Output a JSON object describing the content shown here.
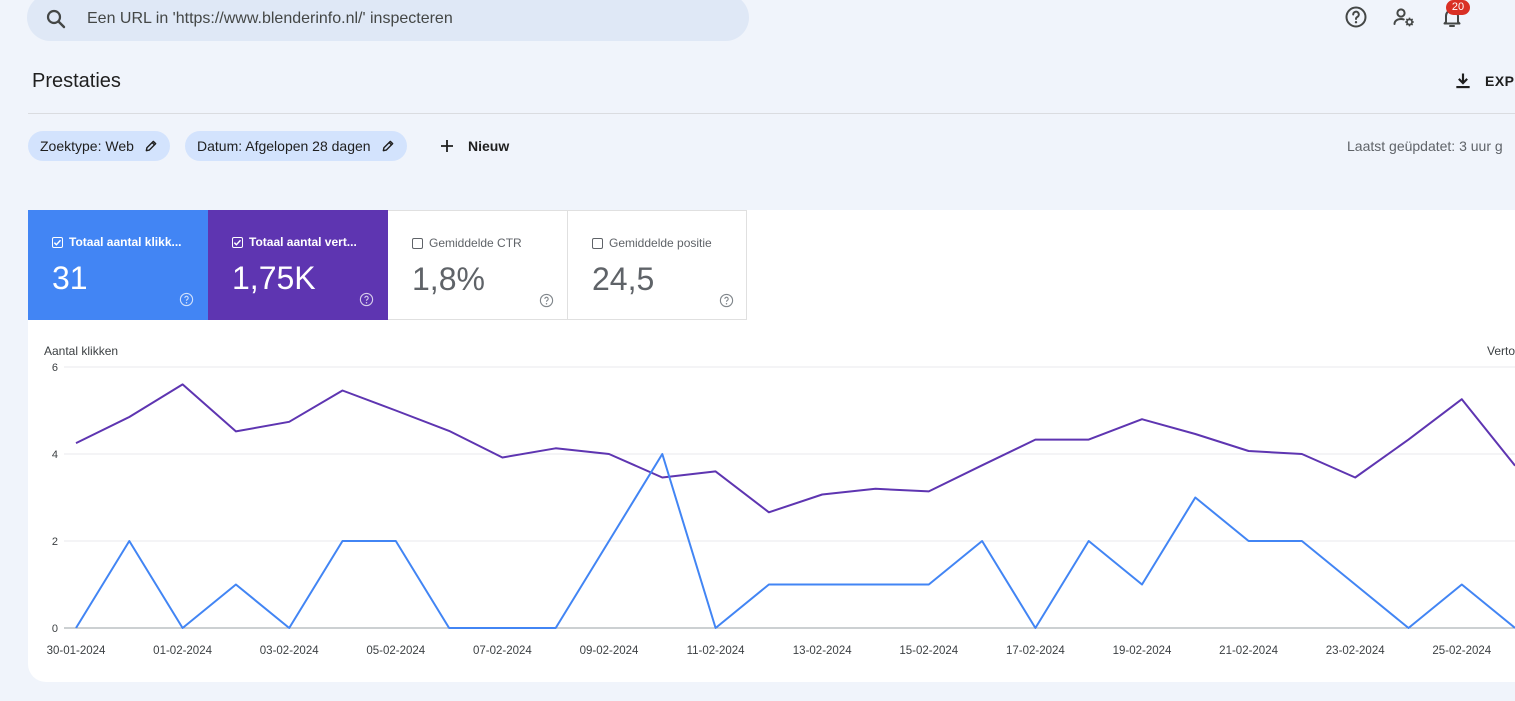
{
  "search": {
    "placeholder": "Een URL in 'https://www.blenderinfo.nl/' inspecteren"
  },
  "header": {
    "notification_count": "20"
  },
  "page": {
    "title": "Prestaties",
    "export_label": "EXPO"
  },
  "filters": {
    "search_type": "Zoektype: Web",
    "date": "Datum: Afgelopen 28 dagen",
    "new_label": "Nieuw",
    "last_updated": "Laatst geüpdatet: 3 uur g"
  },
  "metrics": [
    {
      "label": "Totaal aantal klikk...",
      "value": "31",
      "checked": true
    },
    {
      "label": "Totaal aantal vert...",
      "value": "1,75K",
      "checked": true
    },
    {
      "label": "Gemiddelde CTR",
      "value": "1,8%",
      "checked": false
    },
    {
      "label": "Gemiddelde positie",
      "value": "24,5",
      "checked": false
    }
  ],
  "colors": {
    "clicks": "#4285f4",
    "impressions": "#5e35b1",
    "background": "#f0f4fb"
  },
  "chart_data": {
    "type": "line",
    "ylabel_left": "Aantal klikken",
    "ylabel_right": "Verto",
    "yticks_left": [
      "0",
      "2",
      "4",
      "6"
    ],
    "ylim_left": [
      0,
      6
    ],
    "x": [
      "30-01-2024",
      "31-01-2024",
      "01-02-2024",
      "02-02-2024",
      "03-02-2024",
      "04-02-2024",
      "05-02-2024",
      "06-02-2024",
      "07-02-2024",
      "08-02-2024",
      "09-02-2024",
      "10-02-2024",
      "11-02-2024",
      "12-02-2024",
      "13-02-2024",
      "14-02-2024",
      "15-02-2024",
      "16-02-2024",
      "17-02-2024",
      "18-02-2024",
      "19-02-2024",
      "20-02-2024",
      "21-02-2024",
      "22-02-2024",
      "23-02-2024",
      "24-02-2024",
      "25-02-2024",
      "26-02-2024"
    ],
    "x_tick_labels": [
      "30-01-2024",
      "01-02-2024",
      "03-02-2024",
      "05-02-2024",
      "07-02-2024",
      "09-02-2024",
      "11-02-2024",
      "13-02-2024",
      "15-02-2024",
      "17-02-2024",
      "19-02-2024",
      "21-02-2024",
      "23-02-2024",
      "25-02-2024"
    ],
    "grid": true,
    "series": [
      {
        "name": "Totaal aantal klikken",
        "axis": "left",
        "values": [
          0,
          2,
          0,
          1,
          0,
          2,
          2,
          0,
          0,
          0,
          2,
          4,
          0,
          1,
          1,
          1,
          1,
          2,
          0,
          2,
          1,
          3,
          2,
          2,
          1,
          0,
          1,
          0
        ]
      },
      {
        "name": "Totaal aantal vertoningen",
        "axis": "right",
        "values": [
          4.25,
          4.85,
          5.6,
          4.52,
          4.74,
          5.46,
          5.0,
          4.53,
          3.92,
          4.13,
          4.0,
          3.46,
          3.6,
          2.66,
          3.07,
          3.2,
          3.14,
          3.74,
          4.33,
          4.33,
          4.8,
          4.46,
          4.07,
          4.0,
          3.46,
          4.33,
          5.26,
          3.73
        ],
        "note_scale": "plotted on same gridlines as left axis"
      }
    ]
  }
}
